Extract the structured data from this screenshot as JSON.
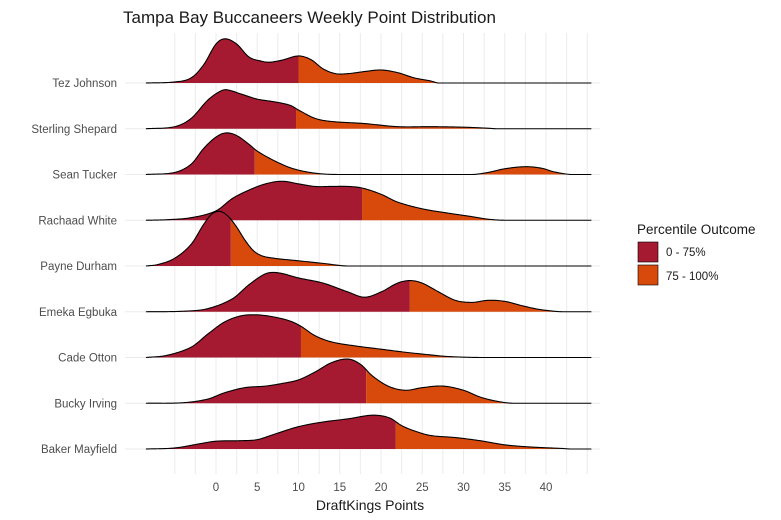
{
  "chart_data": {
    "type": "ridgeline",
    "title": "Tampa Bay Buccaneers Weekly Point Distribution",
    "xlabel": "DraftKings Points",
    "ylabel": "",
    "xlim": [
      -8.5,
      45.5
    ],
    "x_ticks": [
      0,
      5,
      10,
      15,
      20,
      25,
      30,
      35,
      40
    ],
    "x_tick_labels": [
      "0",
      "5",
      "10",
      "15",
      "20",
      "25",
      "30",
      "35",
      "40"
    ],
    "minor_grid_step": 2.5,
    "grid": true,
    "legend": {
      "title": "Percentile Outcome",
      "placement": "right",
      "entries": [
        {
          "label": "0 - 75%",
          "color": "#A51A30"
        },
        {
          "label": "75 - 100%",
          "color": "#D84A0C"
        }
      ]
    },
    "colors": {
      "low": "#A51A30",
      "high": "#D84A0C",
      "outline": "#000000"
    },
    "series": [
      {
        "name": "Tez Johnson",
        "p75": 10.0,
        "density": [
          [
            -8.5,
            0
          ],
          [
            -5,
            0.02
          ],
          [
            -3,
            0.1
          ],
          [
            -1.5,
            0.35
          ],
          [
            0,
            0.75
          ],
          [
            1.1,
            0.85
          ],
          [
            2.5,
            0.75
          ],
          [
            4,
            0.5
          ],
          [
            5.5,
            0.42
          ],
          [
            6.5,
            0.4
          ],
          [
            8,
            0.44
          ],
          [
            10,
            0.52
          ],
          [
            11.5,
            0.45
          ],
          [
            13,
            0.27
          ],
          [
            14.5,
            0.18
          ],
          [
            16,
            0.18
          ],
          [
            18,
            0.22
          ],
          [
            20,
            0.25
          ],
          [
            22,
            0.2
          ],
          [
            24,
            0.1
          ],
          [
            26,
            0.04
          ],
          [
            27,
            0
          ],
          [
            45.5,
            0
          ]
        ]
      },
      {
        "name": "Sterling Shepard",
        "p75": 9.7,
        "density": [
          [
            -8.5,
            0
          ],
          [
            -5,
            0.04
          ],
          [
            -3,
            0.2
          ],
          [
            -1,
            0.55
          ],
          [
            0.5,
            0.72
          ],
          [
            1.3,
            0.75
          ],
          [
            3,
            0.67
          ],
          [
            5,
            0.57
          ],
          [
            7,
            0.52
          ],
          [
            9,
            0.45
          ],
          [
            10,
            0.36
          ],
          [
            12,
            0.2
          ],
          [
            14,
            0.14
          ],
          [
            18,
            0.1
          ],
          [
            22,
            0.04
          ],
          [
            26,
            0.04
          ],
          [
            30,
            0.03
          ],
          [
            33,
            0.01
          ],
          [
            34,
            0
          ],
          [
            45.5,
            0
          ]
        ]
      },
      {
        "name": "Sean Tucker",
        "p75": 4.7,
        "density": [
          [
            -8.5,
            0
          ],
          [
            -5,
            0.04
          ],
          [
            -3,
            0.2
          ],
          [
            -1.5,
            0.5
          ],
          [
            0,
            0.72
          ],
          [
            1.2,
            0.8
          ],
          [
            2.5,
            0.75
          ],
          [
            4,
            0.58
          ],
          [
            5,
            0.45
          ],
          [
            7,
            0.27
          ],
          [
            9,
            0.13
          ],
          [
            11,
            0.05
          ],
          [
            13,
            0.01
          ],
          [
            15,
            0
          ],
          [
            31,
            0
          ],
          [
            33,
            0.04
          ],
          [
            35,
            0.11
          ],
          [
            37.5,
            0.15
          ],
          [
            39.5,
            0.12
          ],
          [
            41,
            0.05
          ],
          [
            43,
            0
          ],
          [
            45.5,
            0
          ]
        ]
      },
      {
        "name": "Rachaad White",
        "p75": 17.7,
        "density": [
          [
            -8.5,
            0
          ],
          [
            -6,
            0.01
          ],
          [
            -3,
            0.05
          ],
          [
            0,
            0.18
          ],
          [
            2,
            0.42
          ],
          [
            4,
            0.58
          ],
          [
            6,
            0.7
          ],
          [
            8,
            0.75
          ],
          [
            10,
            0.7
          ],
          [
            12,
            0.65
          ],
          [
            14,
            0.65
          ],
          [
            16,
            0.65
          ],
          [
            17.7,
            0.62
          ],
          [
            20,
            0.5
          ],
          [
            22,
            0.35
          ],
          [
            25,
            0.22
          ],
          [
            28,
            0.14
          ],
          [
            31,
            0.07
          ],
          [
            33,
            0.02
          ],
          [
            35,
            0
          ],
          [
            45.5,
            0
          ]
        ]
      },
      {
        "name": "Payne Durham",
        "p75": 1.8,
        "density": [
          [
            -8.5,
            0
          ],
          [
            -7,
            0.03
          ],
          [
            -5,
            0.15
          ],
          [
            -3,
            0.42
          ],
          [
            -1.5,
            0.8
          ],
          [
            -0.5,
            1.0
          ],
          [
            0.5,
            1.05
          ],
          [
            1.5,
            0.95
          ],
          [
            2.5,
            0.75
          ],
          [
            3.5,
            0.5
          ],
          [
            4.5,
            0.3
          ],
          [
            5.5,
            0.2
          ],
          [
            7,
            0.15
          ],
          [
            10,
            0.1
          ],
          [
            13,
            0.05
          ],
          [
            16,
            0
          ],
          [
            45.5,
            0
          ]
        ]
      },
      {
        "name": "Emeka Egbuka",
        "p75": 23.5,
        "density": [
          [
            -8.5,
            0
          ],
          [
            -4,
            0.01
          ],
          [
            -1,
            0.06
          ],
          [
            2,
            0.25
          ],
          [
            4,
            0.52
          ],
          [
            6,
            0.73
          ],
          [
            7.5,
            0.75
          ],
          [
            10,
            0.65
          ],
          [
            13,
            0.55
          ],
          [
            16,
            0.38
          ],
          [
            18,
            0.28
          ],
          [
            20,
            0.38
          ],
          [
            22,
            0.55
          ],
          [
            23.5,
            0.6
          ],
          [
            25,
            0.55
          ],
          [
            27,
            0.38
          ],
          [
            29,
            0.22
          ],
          [
            31,
            0.18
          ],
          [
            33,
            0.22
          ],
          [
            35,
            0.2
          ],
          [
            37,
            0.12
          ],
          [
            39,
            0.05
          ],
          [
            41,
            0.01
          ],
          [
            42,
            0
          ],
          [
            45.5,
            0
          ]
        ]
      },
      {
        "name": "Cade Otton",
        "p75": 10.3,
        "density": [
          [
            -8.5,
            0
          ],
          [
            -6,
            0.04
          ],
          [
            -3,
            0.2
          ],
          [
            -1,
            0.45
          ],
          [
            1,
            0.68
          ],
          [
            3,
            0.8
          ],
          [
            5,
            0.82
          ],
          [
            7,
            0.78
          ],
          [
            9,
            0.7
          ],
          [
            10.3,
            0.6
          ],
          [
            12,
            0.42
          ],
          [
            14,
            0.3
          ],
          [
            17,
            0.22
          ],
          [
            20,
            0.16
          ],
          [
            23,
            0.1
          ],
          [
            26,
            0.05
          ],
          [
            28,
            0.02
          ],
          [
            32,
            0
          ],
          [
            45.5,
            0
          ]
        ]
      },
      {
        "name": "Bucky Irving",
        "p75": 18.2,
        "density": [
          [
            -8.5,
            0
          ],
          [
            -4,
            0.01
          ],
          [
            -1,
            0.08
          ],
          [
            1,
            0.2
          ],
          [
            3.5,
            0.3
          ],
          [
            6,
            0.33
          ],
          [
            8,
            0.38
          ],
          [
            10,
            0.45
          ],
          [
            12,
            0.6
          ],
          [
            14,
            0.78
          ],
          [
            16,
            0.85
          ],
          [
            17.5,
            0.75
          ],
          [
            19,
            0.52
          ],
          [
            21,
            0.32
          ],
          [
            23,
            0.25
          ],
          [
            25,
            0.3
          ],
          [
            27.5,
            0.33
          ],
          [
            30,
            0.25
          ],
          [
            32,
            0.12
          ],
          [
            34,
            0.04
          ],
          [
            36,
            0
          ],
          [
            45.5,
            0
          ]
        ]
      },
      {
        "name": "Baker Mayfield",
        "p75": 21.8,
        "density": [
          [
            -8.5,
            0
          ],
          [
            -5,
            0.02
          ],
          [
            -2,
            0.1
          ],
          [
            0,
            0.15
          ],
          [
            3,
            0.16
          ],
          [
            5,
            0.18
          ],
          [
            7,
            0.28
          ],
          [
            10,
            0.43
          ],
          [
            13,
            0.52
          ],
          [
            16,
            0.58
          ],
          [
            19,
            0.65
          ],
          [
            21,
            0.6
          ],
          [
            22.5,
            0.45
          ],
          [
            24,
            0.35
          ],
          [
            26,
            0.26
          ],
          [
            29,
            0.22
          ],
          [
            32,
            0.16
          ],
          [
            35,
            0.08
          ],
          [
            38,
            0.04
          ],
          [
            42,
            0.01
          ],
          [
            43,
            0
          ],
          [
            45.5,
            0
          ]
        ]
      }
    ]
  }
}
